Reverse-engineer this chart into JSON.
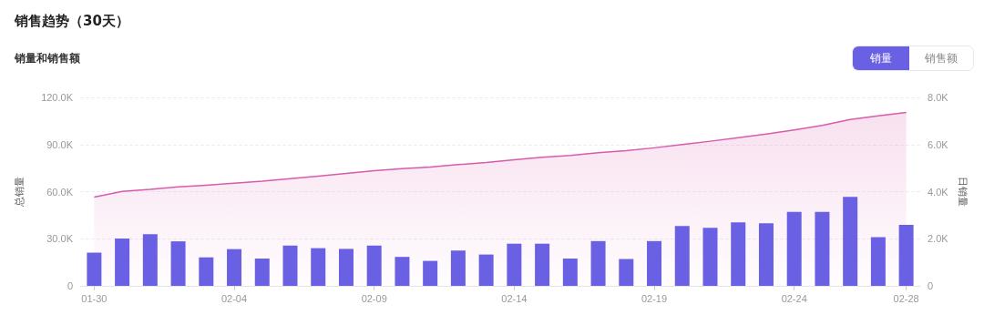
{
  "chart_data": {
    "type": "bar",
    "title": "销售趋势（30天）",
    "subtitle": "销量和销售额",
    "ylabel": "总销量",
    "y2label": "日销量",
    "annotations": [
      "销量",
      "销售额"
    ],
    "categories": [
      "01-30",
      null,
      null,
      null,
      null,
      "02-04",
      null,
      null,
      null,
      null,
      "02-09",
      null,
      null,
      null,
      null,
      "02-14",
      null,
      null,
      null,
      null,
      "02-19",
      null,
      null,
      null,
      null,
      "02-24",
      null,
      null,
      null,
      "02-28"
    ],
    "series": [
      {
        "type": "area",
        "color": "#d95bab",
        "marker": "none",
        "values": [
          56500,
          60200,
          61400,
          63100,
          64100,
          65400,
          66600,
          68300,
          69900,
          71600,
          73400,
          74700,
          75700,
          77200,
          78500,
          80300,
          81900,
          83000,
          84800,
          86100,
          87900,
          90000,
          92100,
          94300,
          96600,
          99300,
          102200,
          105900,
          108200,
          110500
        ]
      },
      {
        "type": "bar",
        "axis": "y2",
        "color": "#6a60e3",
        "values": [
          1410,
          2010,
          2190,
          1890,
          1210,
          1560,
          1160,
          1710,
          1600,
          1570,
          1710,
          1230,
          1060,
          1500,
          1330,
          1790,
          1790,
          1160,
          1900,
          1140,
          1900,
          2540,
          2460,
          2700,
          2660,
          3140,
          3140,
          3780,
          2070,
          2590
        ]
      }
    ],
    "ylim": [
      0,
      120000
    ],
    "yticks": [
      0,
      {
        "value": 30000,
        "label": "30.0K"
      },
      {
        "value": 60000,
        "label": "60.0K"
      },
      {
        "value": 90000,
        "label": "90.0K"
      },
      {
        "value": 120000,
        "label": "120.0K"
      }
    ],
    "y2lim": [
      0,
      8000
    ],
    "y2ticks": [
      0,
      {
        "value": 2000,
        "label": "2.0K"
      },
      {
        "value": 4000,
        "label": "4.0K"
      },
      {
        "value": 6000,
        "label": "6.0K"
      },
      {
        "value": 8000,
        "label": "8.0K"
      }
    ],
    "grid": "y"
  }
}
